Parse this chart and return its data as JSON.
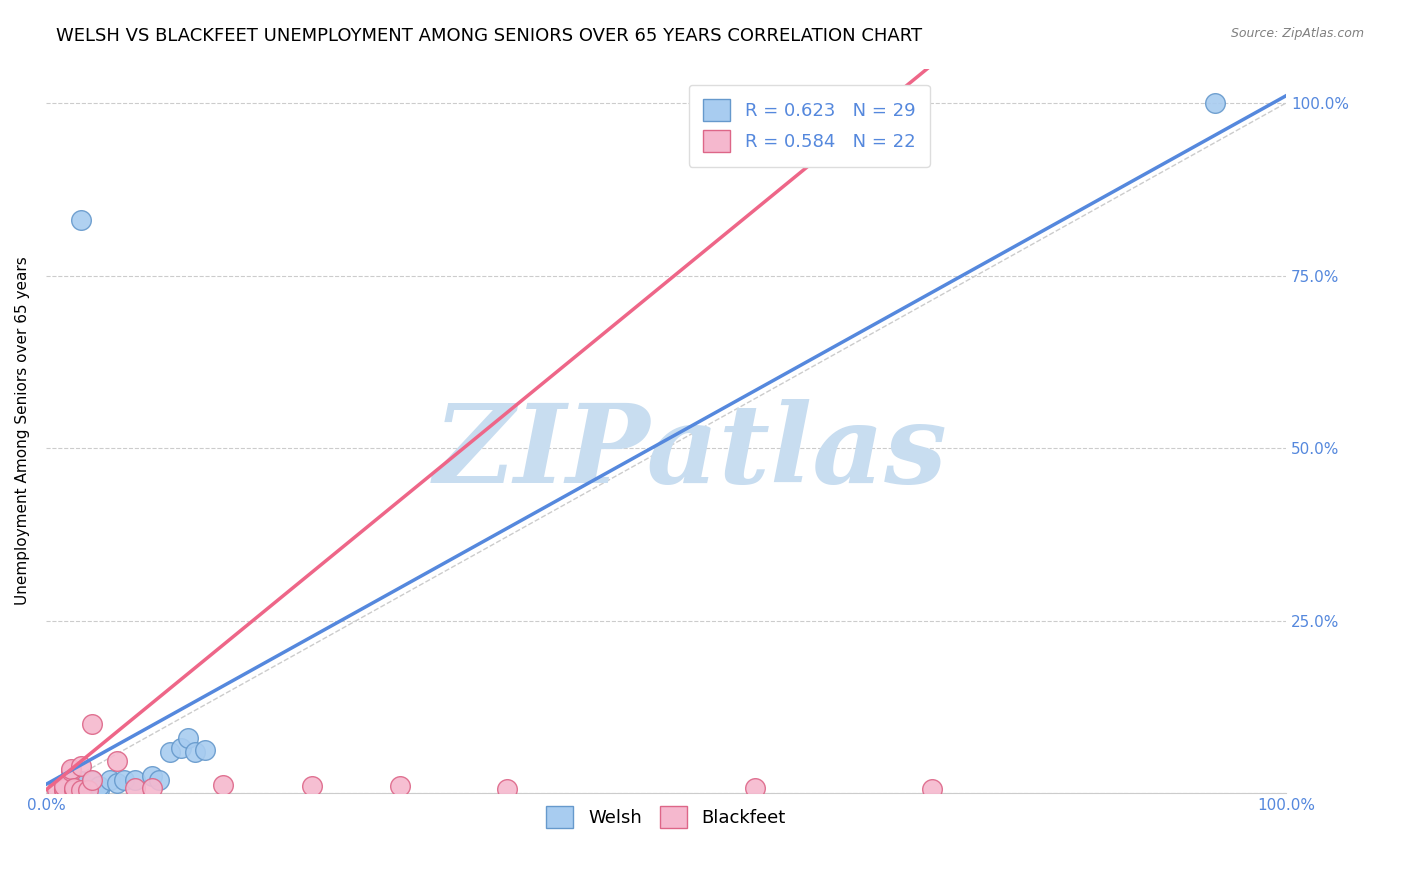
{
  "title": "WELSH VS BLACKFEET UNEMPLOYMENT AMONG SENIORS OVER 65 YEARS CORRELATION CHART",
  "source": "Source: ZipAtlas.com",
  "ylabel": "Unemployment Among Seniors over 65 years",
  "welsh_color": "#A8CCF0",
  "blackfeet_color": "#F5B8CE",
  "welsh_edge_color": "#6699CC",
  "blackfeet_edge_color": "#DD6688",
  "welsh_line_color": "#5588DD",
  "blackfeet_line_color": "#EE6688",
  "diagonal_color": "#CCCCCC",
  "watermark": "ZIPatlas",
  "watermark_color": "#C8DDF0",
  "tick_color": "#5588DD",
  "welsh_scatter": [
    [
      0.005,
      0.005
    ],
    [
      0.005,
      0.01
    ],
    [
      0.005,
      0.013
    ],
    [
      0.007,
      0.005
    ],
    [
      0.007,
      0.008
    ],
    [
      0.008,
      0.005
    ],
    [
      0.008,
      0.012
    ],
    [
      0.008,
      0.018
    ],
    [
      0.01,
      0.005
    ],
    [
      0.01,
      0.01
    ],
    [
      0.01,
      0.018
    ],
    [
      0.012,
      0.005
    ],
    [
      0.012,
      0.007
    ],
    [
      0.013,
      0.018
    ],
    [
      0.015,
      0.005
    ],
    [
      0.015,
      0.01
    ],
    [
      0.018,
      0.02
    ],
    [
      0.02,
      0.015
    ],
    [
      0.022,
      0.02
    ],
    [
      0.025,
      0.02
    ],
    [
      0.03,
      0.025
    ],
    [
      0.032,
      0.02
    ],
    [
      0.035,
      0.06
    ],
    [
      0.038,
      0.065
    ],
    [
      0.04,
      0.08
    ],
    [
      0.042,
      0.06
    ],
    [
      0.045,
      0.063
    ],
    [
      0.01,
      0.83
    ],
    [
      0.33,
      1.0
    ]
  ],
  "blackfeet_scatter": [
    [
      0.003,
      0.005
    ],
    [
      0.005,
      0.005
    ],
    [
      0.005,
      0.007
    ],
    [
      0.005,
      0.01
    ],
    [
      0.007,
      0.033
    ],
    [
      0.007,
      0.035
    ],
    [
      0.008,
      0.005
    ],
    [
      0.008,
      0.008
    ],
    [
      0.01,
      0.005
    ],
    [
      0.01,
      0.04
    ],
    [
      0.012,
      0.005
    ],
    [
      0.013,
      0.02
    ],
    [
      0.013,
      0.1
    ],
    [
      0.02,
      0.047
    ],
    [
      0.025,
      0.008
    ],
    [
      0.03,
      0.008
    ],
    [
      0.05,
      0.012
    ],
    [
      0.075,
      0.01
    ],
    [
      0.1,
      0.01
    ],
    [
      0.13,
      0.007
    ],
    [
      0.2,
      0.008
    ],
    [
      0.25,
      0.007
    ]
  ],
  "welsh_R": 0.623,
  "welsh_N": 29,
  "blackfeet_R": 0.584,
  "blackfeet_N": 22,
  "welsh_line_slope": 2.85,
  "welsh_line_intercept": 0.013,
  "blackfeet_line_slope": 4.2,
  "blackfeet_line_intercept": 0.005,
  "xlim": [
    0,
    0.35
  ],
  "ylim": [
    0,
    1.05
  ],
  "title_fontsize": 13,
  "label_fontsize": 11,
  "tick_fontsize": 11,
  "legend_fontsize": 13
}
